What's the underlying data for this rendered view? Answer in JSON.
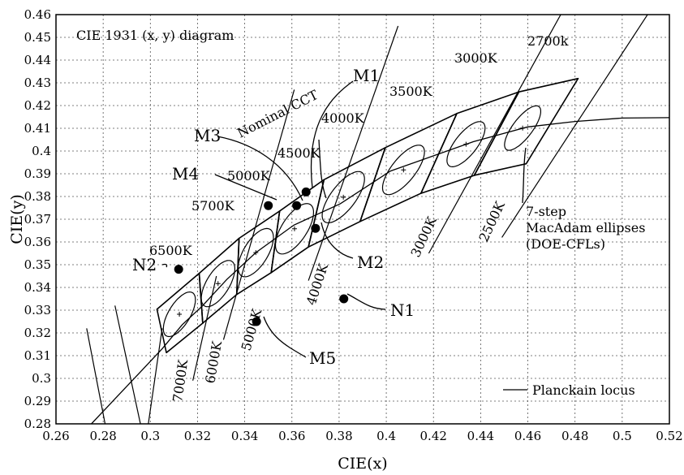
{
  "chart_data": {
    "type": "scatter",
    "title": "CIE 1931 (x, y) diagram",
    "xlabel": "CIE(x)",
    "ylabel": "CIE(y)",
    "xlim": [
      0.26,
      0.52
    ],
    "ylim": [
      0.28,
      0.46
    ],
    "xticks": [
      "0.26",
      "0.28",
      "0.3",
      "0.32",
      "0.34",
      "0.36",
      "0.38",
      "0.4",
      "0.42",
      "0.44",
      "0.46",
      "0.48",
      "0.5",
      "0.52"
    ],
    "yticks": [
      "0.28",
      "0.29",
      "0.3",
      "0.31",
      "0.32",
      "0.33",
      "0.34",
      "0.35",
      "0.36",
      "0.37",
      "0.38",
      "0.39",
      "0.4",
      "0.41",
      "0.42",
      "0.43",
      "0.44",
      "0.45",
      "0.46"
    ],
    "grid": true,
    "legend": {
      "position": "bottom-right",
      "entries": [
        "Planckain locus"
      ]
    },
    "planckian_locus": [
      [
        0.275,
        0.28
      ],
      [
        0.285,
        0.291
      ],
      [
        0.295,
        0.302
      ],
      [
        0.305,
        0.313
      ],
      [
        0.3135,
        0.3236
      ],
      [
        0.322,
        0.3318
      ],
      [
        0.3324,
        0.3435
      ],
      [
        0.3447,
        0.3553
      ],
      [
        0.3608,
        0.3674
      ],
      [
        0.3805,
        0.3768
      ],
      [
        0.4018,
        0.3912
      ],
      [
        0.4369,
        0.4041
      ],
      [
        0.4599,
        0.4106
      ],
      [
        0.48,
        0.413
      ],
      [
        0.5,
        0.4145
      ],
      [
        0.52,
        0.4147
      ]
    ],
    "nominal_cct_points": [
      {
        "label": "2700k",
        "x": 0.4578,
        "y": 0.4101
      },
      {
        "label": "3000K",
        "x": 0.4338,
        "y": 0.403
      },
      {
        "label": "3500K",
        "x": 0.4073,
        "y": 0.3917
      },
      {
        "label": "4000K",
        "x": 0.3818,
        "y": 0.3797
      },
      {
        "label": "4500K",
        "x": 0.3611,
        "y": 0.3658
      },
      {
        "label": "5000K",
        "x": 0.3447,
        "y": 0.3553
      },
      {
        "label": "5700K",
        "x": 0.3287,
        "y": 0.3417
      },
      {
        "label": "6500K",
        "x": 0.3123,
        "y": 0.3282
      }
    ],
    "ansi_quadrangles": [
      [
        [
          0.4813,
          0.4319
        ],
        [
          0.4562,
          0.426
        ],
        [
          0.4373,
          0.3893
        ],
        [
          0.4593,
          0.3944
        ]
      ],
      [
        [
          0.4562,
          0.426
        ],
        [
          0.4299,
          0.4165
        ],
        [
          0.4147,
          0.3814
        ],
        [
          0.4373,
          0.3893
        ]
      ],
      [
        [
          0.4299,
          0.4165
        ],
        [
          0.3996,
          0.4015
        ],
        [
          0.3889,
          0.369
        ],
        [
          0.4147,
          0.3814
        ]
      ],
      [
        [
          0.3996,
          0.4015
        ],
        [
          0.3736,
          0.3874
        ],
        [
          0.367,
          0.3578
        ],
        [
          0.3889,
          0.369
        ]
      ],
      [
        [
          0.3736,
          0.3874
        ],
        [
          0.3548,
          0.3736
        ],
        [
          0.3512,
          0.3465
        ],
        [
          0.367,
          0.3578
        ]
      ],
      [
        [
          0.3548,
          0.3736
        ],
        [
          0.3376,
          0.3616
        ],
        [
          0.3366,
          0.3369
        ],
        [
          0.3512,
          0.3465
        ]
      ],
      [
        [
          0.3376,
          0.3616
        ],
        [
          0.3207,
          0.3462
        ],
        [
          0.3222,
          0.3243
        ],
        [
          0.3366,
          0.3369
        ]
      ],
      [
        [
          0.3207,
          0.3462
        ],
        [
          0.3028,
          0.3304
        ],
        [
          0.3068,
          0.3113
        ],
        [
          0.3222,
          0.3243
        ]
      ]
    ],
    "isotemperature_lines": [
      {
        "label": "2500K",
        "from": [
          0.449,
          0.362
        ],
        "to": [
          0.512,
          0.462
        ]
      },
      {
        "label": "3000K",
        "from": [
          0.418,
          0.355
        ],
        "to": [
          0.475,
          0.462
        ]
      },
      {
        "label": "4000K",
        "from": [
          0.367,
          0.343
        ],
        "to": [
          0.405,
          0.455
        ]
      },
      {
        "label": "5000K",
        "from": [
          0.331,
          0.317
        ],
        "to": [
          0.361,
          0.427
        ]
      },
      {
        "label": "6000K",
        "from": [
          0.318,
          0.299
        ],
        "to": [
          0.328,
          0.345
        ]
      },
      {
        "label": "7000K",
        "from": [
          0.299,
          0.279
        ],
        "to": [
          0.305,
          0.322
        ]
      }
    ],
    "outer_lines": [
      {
        "from": [
          0.281,
          0.279
        ],
        "to": [
          0.273,
          0.322
        ]
      },
      {
        "from": [
          0.296,
          0.279
        ],
        "to": [
          0.285,
          0.332
        ]
      }
    ],
    "ellipses": [
      {
        "cx": 0.4578,
        "cy": 0.4101,
        "a": 0.0117,
        "b": 0.0042,
        "angle": 54.0
      },
      {
        "cx": 0.4338,
        "cy": 0.403,
        "a": 0.0119,
        "b": 0.0047,
        "angle": 53.2
      },
      {
        "cx": 0.4073,
        "cy": 0.3917,
        "a": 0.0131,
        "b": 0.0051,
        "angle": 52.9
      },
      {
        "cx": 0.3818,
        "cy": 0.3797,
        "a": 0.0134,
        "b": 0.0053,
        "angle": 54.0
      },
      {
        "cx": 0.3611,
        "cy": 0.3658,
        "a": 0.0126,
        "b": 0.0054,
        "angle": 58.2
      },
      {
        "cx": 0.3447,
        "cy": 0.3553,
        "a": 0.0119,
        "b": 0.0052,
        "angle": 60.0
      },
      {
        "cx": 0.3287,
        "cy": 0.3417,
        "a": 0.0114,
        "b": 0.0049,
        "angle": 60.0
      },
      {
        "cx": 0.3123,
        "cy": 0.3282,
        "a": 0.011,
        "b": 0.0046,
        "angle": 60.0
      }
    ],
    "measured_points": [
      {
        "label": "M1",
        "x": 0.366,
        "y": 0.382
      },
      {
        "label": "M2",
        "x": 0.37,
        "y": 0.366
      },
      {
        "label": "M3",
        "x": 0.362,
        "y": 0.376
      },
      {
        "label": "M4",
        "x": 0.35,
        "y": 0.376
      },
      {
        "label": "M5",
        "x": 0.345,
        "y": 0.325
      },
      {
        "label": "N1",
        "x": 0.382,
        "y": 0.335
      },
      {
        "label": "N2",
        "x": 0.312,
        "y": 0.348
      }
    ],
    "text_labels": {
      "nominal_cct": "Nominal CCT",
      "macadam_line1": "7-step",
      "macadam_line2": "MacAdam ellipses",
      "macadam_line3": "(DOE-CFLs)",
      "cct_2700": "2700k",
      "cct_3000": "3000K",
      "cct_3500": "3500K",
      "cct_4000": "4000K",
      "cct_4500": "4500K",
      "cct_5000": "5000K",
      "cct_5700": "5700K",
      "cct_6500": "6500K",
      "iso_2500": "2500K",
      "iso_3000": "3000K",
      "iso_4000": "4000K",
      "iso_5000": "5000K",
      "iso_6000": "6000K",
      "iso_7000": "7000K",
      "m1": "M1",
      "m2": "M2",
      "m3": "M3",
      "m4": "M4",
      "m5": "M5",
      "n1": "N1",
      "n2": "N2"
    }
  }
}
